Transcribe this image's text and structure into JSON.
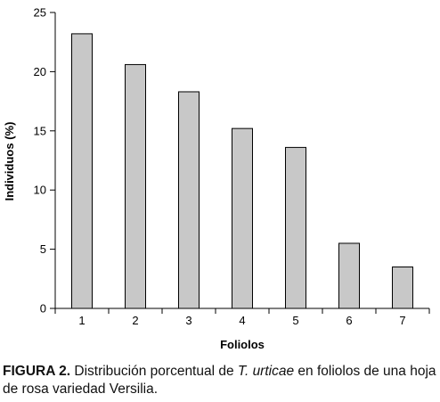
{
  "chart_data": {
    "type": "bar",
    "categories": [
      "1",
      "2",
      "3",
      "4",
      "5",
      "6",
      "7"
    ],
    "values": [
      23.2,
      20.6,
      18.3,
      15.2,
      13.6,
      5.5,
      3.5
    ],
    "xlabel": "Foliolos",
    "ylabel": "Individuos (%)",
    "ylim": [
      0,
      25
    ],
    "yticks": [
      "0",
      "5",
      "10",
      "15",
      "20",
      "25"
    ],
    "grid": false,
    "bar_color": "#c8c8c8",
    "bar_edge_color": "#000000"
  },
  "caption": {
    "figure_label": "FIGURA 2.",
    "text_before": " Distribución porcentual de ",
    "species": "T. urticae",
    "text_after": " en foliolos de una hoja de rosa variedad Versilia."
  }
}
